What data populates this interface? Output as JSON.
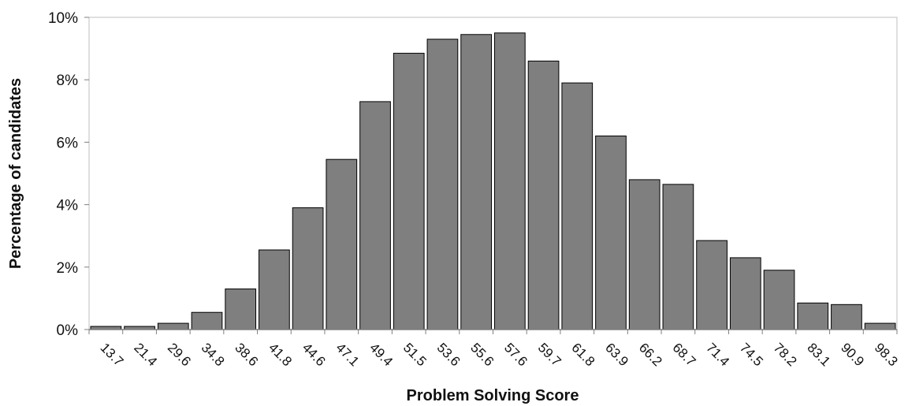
{
  "chart_data": {
    "type": "bar",
    "title": "",
    "xlabel": "Problem Solving Score",
    "ylabel": "Percentage of candidates",
    "categories": [
      "13.7",
      "21.4",
      "29.6",
      "34.8",
      "38.6",
      "41.8",
      "44.6",
      "47.1",
      "49.4",
      "51.5",
      "53.6",
      "55.6",
      "57.6",
      "59.7",
      "61.8",
      "63.9",
      "66.2",
      "68.7",
      "71.4",
      "74.5",
      "78.2",
      "83.1",
      "90.9",
      "98.3"
    ],
    "values": [
      0.1,
      0.1,
      0.2,
      0.55,
      1.3,
      2.55,
      3.9,
      5.45,
      7.3,
      8.85,
      9.3,
      9.45,
      9.5,
      8.6,
      7.9,
      6.2,
      4.8,
      4.65,
      2.85,
      2.3,
      1.9,
      0.85,
      0.8,
      0.2
    ],
    "value_unit": "%",
    "ylim": [
      0,
      10
    ],
    "yticks": [
      "0%",
      "2%",
      "4%",
      "6%",
      "8%",
      "10%"
    ],
    "grid": false,
    "legend": "none",
    "colors": {
      "bar_fill": "#7f7f7f",
      "bar_stroke": "#000000",
      "axis": "#7f7f7f",
      "plot_border": "#bfbfbf"
    }
  }
}
